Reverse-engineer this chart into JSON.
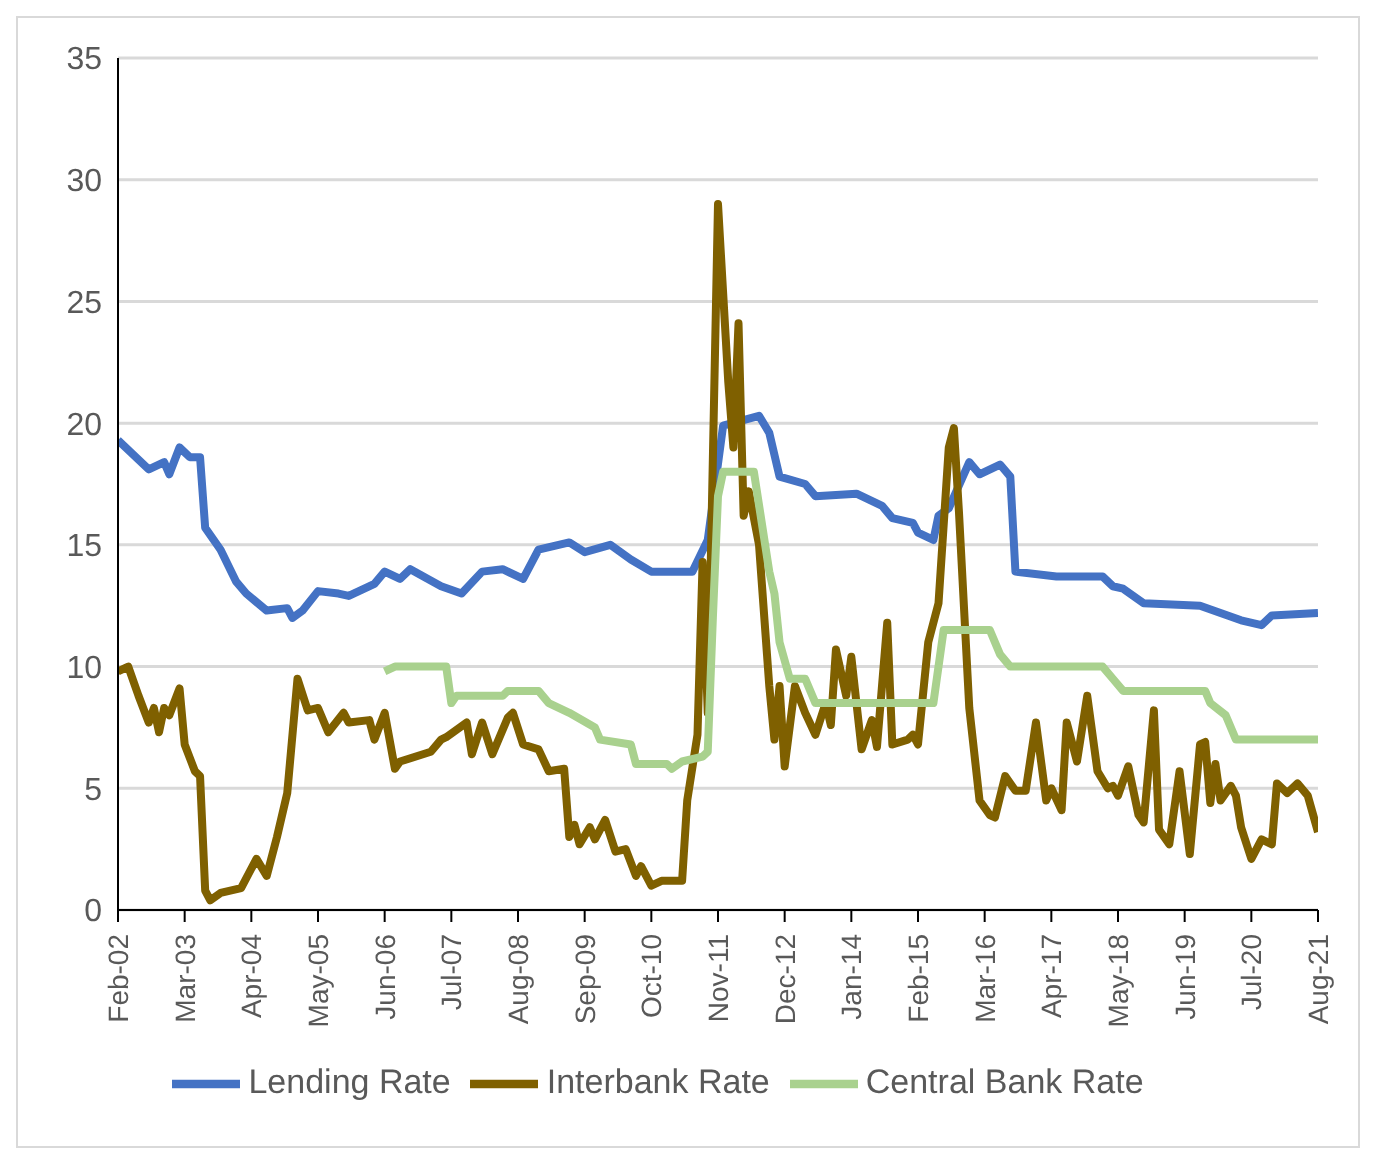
{
  "chart_data": {
    "type": "line",
    "xlim": [
      "2002-02",
      "2021-08"
    ],
    "xticks": [
      {
        "value": "2002-02",
        "label": "Feb-02"
      },
      {
        "value": "2003-03",
        "label": "Mar-03"
      },
      {
        "value": "2004-04",
        "label": "Apr-04"
      },
      {
        "value": "2005-05",
        "label": "May-05"
      },
      {
        "value": "2006-06",
        "label": "Jun-06"
      },
      {
        "value": "2007-07",
        "label": "Jul-07"
      },
      {
        "value": "2008-08",
        "label": "Aug-08"
      },
      {
        "value": "2009-09",
        "label": "Sep-09"
      },
      {
        "value": "2010-10",
        "label": "Oct-10"
      },
      {
        "value": "2011-11",
        "label": "Nov-11"
      },
      {
        "value": "2012-12",
        "label": "Dec-12"
      },
      {
        "value": "2014-01",
        "label": "Jan-14"
      },
      {
        "value": "2015-02",
        "label": "Feb-15"
      },
      {
        "value": "2016-03",
        "label": "Mar-16"
      },
      {
        "value": "2017-04",
        "label": "Apr-17"
      },
      {
        "value": "2018-05",
        "label": "May-18"
      },
      {
        "value": "2019-06",
        "label": "Jun-19"
      },
      {
        "value": "2020-07",
        "label": "Jul-20"
      },
      {
        "value": "2021-08",
        "label": "Aug-21"
      }
    ],
    "ylim": [
      0,
      35
    ],
    "yticks": [
      0,
      5,
      10,
      15,
      20,
      25,
      30,
      35
    ],
    "grid": "y",
    "legend": "bottom",
    "marker": "none",
    "line_style": "solid",
    "series": [
      {
        "name": "Lending Rate",
        "color": "#4472c4",
        "x": [
          "2002-02",
          "2002-08",
          "2002-11",
          "2002-12",
          "2003-02",
          "2003-04",
          "2003-06",
          "2003-07",
          "2003-10",
          "2004-01",
          "2004-03",
          "2004-07",
          "2004-11",
          "2004-12",
          "2005-02",
          "2005-05",
          "2005-09",
          "2005-11",
          "2006-04",
          "2006-06",
          "2006-09",
          "2006-11",
          "2007-05",
          "2007-09",
          "2008-01",
          "2008-05",
          "2008-09",
          "2008-12",
          "2009-06",
          "2009-09",
          "2010-02",
          "2010-06",
          "2010-10",
          "2011-06",
          "2011-09",
          "2011-12",
          "2012-07",
          "2012-09",
          "2012-11",
          "2013-04",
          "2013-06",
          "2014-02",
          "2014-07",
          "2014-09",
          "2015-01",
          "2015-02",
          "2015-05",
          "2015-06",
          "2015-08",
          "2015-12",
          "2016-02",
          "2016-06",
          "2016-08",
          "2016-09",
          "2017-05",
          "2018-02",
          "2018-04",
          "2018-06",
          "2018-10",
          "2019-09",
          "2020-01",
          "2020-05",
          "2020-09",
          "2020-11",
          "2021-08"
        ],
        "values": [
          19.3,
          18.1,
          18.4,
          17.9,
          19.0,
          18.6,
          18.6,
          15.7,
          14.8,
          13.5,
          13.0,
          12.3,
          12.4,
          12.0,
          12.3,
          13.1,
          13.0,
          12.9,
          13.4,
          13.9,
          13.6,
          14.0,
          13.3,
          13.0,
          13.9,
          14.0,
          13.6,
          14.8,
          15.1,
          14.7,
          15.0,
          14.4,
          13.9,
          13.9,
          15.2,
          19.9,
          20.3,
          19.6,
          17.8,
          17.5,
          17.0,
          17.1,
          16.6,
          16.1,
          15.9,
          15.5,
          15.2,
          16.2,
          16.5,
          18.4,
          17.9,
          18.3,
          17.8,
          13.9,
          13.7,
          13.7,
          13.3,
          13.2,
          12.6,
          12.5,
          12.2,
          11.9,
          11.7,
          12.1,
          12.2
        ]
      },
      {
        "name": "Interbank Rate",
        "color": "#7f6000",
        "x": [
          "2002-02",
          "2002-04",
          "2002-06",
          "2002-08",
          "2002-09",
          "2002-10",
          "2002-11",
          "2002-12",
          "2003-02",
          "2003-03",
          "2003-05",
          "2003-06",
          "2003-07",
          "2003-08",
          "2003-10",
          "2004-02",
          "2004-05",
          "2004-07",
          "2004-09",
          "2004-11",
          "2005-01",
          "2005-03",
          "2005-05",
          "2005-07",
          "2005-10",
          "2005-11",
          "2006-03",
          "2006-04",
          "2006-06",
          "2006-08",
          "2006-09",
          "2007-03",
          "2007-05",
          "2007-06",
          "2007-10",
          "2007-11",
          "2008-01",
          "2008-03",
          "2008-06",
          "2008-07",
          "2008-09",
          "2008-12",
          "2009-02",
          "2009-05",
          "2009-06",
          "2009-07",
          "2009-08",
          "2009-10",
          "2009-11",
          "2010-01",
          "2010-03",
          "2010-05",
          "2010-07",
          "2010-08",
          "2010-10",
          "2010-12",
          "2011-04",
          "2011-05",
          "2011-07",
          "2011-08",
          "2011-09",
          "2011-11",
          "2012-01",
          "2012-02",
          "2012-03",
          "2012-04",
          "2012-05",
          "2012-07",
          "2012-09",
          "2012-10",
          "2012-11",
          "2012-12",
          "2013-02",
          "2013-04",
          "2013-06",
          "2013-08",
          "2013-09",
          "2013-10",
          "2013-12",
          "2014-01",
          "2014-03",
          "2014-05",
          "2014-06",
          "2014-08",
          "2014-09",
          "2014-12",
          "2015-01",
          "2015-02",
          "2015-04",
          "2015-06",
          "2015-08",
          "2015-09",
          "2015-10",
          "2015-12",
          "2016-02",
          "2016-04",
          "2016-05",
          "2016-07",
          "2016-09",
          "2016-11",
          "2017-01",
          "2017-03",
          "2017-04",
          "2017-06",
          "2017-07",
          "2017-09",
          "2017-11",
          "2018-01",
          "2018-03",
          "2018-04",
          "2018-05",
          "2018-07",
          "2018-09",
          "2018-10",
          "2018-12",
          "2019-01",
          "2019-03",
          "2019-05",
          "2019-07",
          "2019-09",
          "2019-10",
          "2019-11",
          "2019-12",
          "2020-01",
          "2020-03",
          "2020-04",
          "2020-05",
          "2020-07",
          "2020-09",
          "2020-11",
          "2020-12",
          "2021-02",
          "2021-04",
          "2021-06",
          "2021-08"
        ],
        "values": [
          9.8,
          10.0,
          8.8,
          7.7,
          8.3,
          7.3,
          8.3,
          8.0,
          9.1,
          6.8,
          5.7,
          5.5,
          0.8,
          0.4,
          0.7,
          0.9,
          2.1,
          1.4,
          3.0,
          4.8,
          9.5,
          8.2,
          8.3,
          7.3,
          8.1,
          7.7,
          7.8,
          7.0,
          8.1,
          5.8,
          6.1,
          6.5,
          7.0,
          7.1,
          7.7,
          6.4,
          7.7,
          6.4,
          7.9,
          8.1,
          6.8,
          6.6,
          5.7,
          5.8,
          3.0,
          3.5,
          2.7,
          3.4,
          2.9,
          3.7,
          2.4,
          2.5,
          1.4,
          1.8,
          1.0,
          1.2,
          1.2,
          4.5,
          7.2,
          14.3,
          8.1,
          29.0,
          21.7,
          19.0,
          24.1,
          16.2,
          17.2,
          15.0,
          9.2,
          7.0,
          9.2,
          5.9,
          9.2,
          8.1,
          7.2,
          8.5,
          7.6,
          10.7,
          8.8,
          10.4,
          6.6,
          7.8,
          6.7,
          11.8,
          6.8,
          7.0,
          7.2,
          6.8,
          11.0,
          12.6,
          19.0,
          19.8,
          16.3,
          8.3,
          4.5,
          3.9,
          3.8,
          5.5,
          4.9,
          4.9,
          7.7,
          4.5,
          5.0,
          4.1,
          7.7,
          6.1,
          8.8,
          5.7,
          5.0,
          5.1,
          4.7,
          5.9,
          3.9,
          3.6,
          8.2,
          3.3,
          2.7,
          5.7,
          2.3,
          6.8,
          6.9,
          4.4,
          6.0,
          4.5,
          5.1,
          4.7,
          3.4,
          2.1,
          2.9,
          2.7,
          5.2,
          4.8,
          5.2,
          4.7,
          3.2
        ]
      },
      {
        "name": "Central Bank Rate",
        "color": "#a9d18e",
        "x": [
          "2006-06",
          "2006-08",
          "2007-06",
          "2007-07",
          "2007-08",
          "2008-05",
          "2008-06",
          "2008-12",
          "2009-02",
          "2009-06",
          "2009-11",
          "2009-12",
          "2010-06",
          "2010-07",
          "2011-01",
          "2011-02",
          "2011-04",
          "2011-08",
          "2011-09",
          "2011-10",
          "2011-11",
          "2011-12",
          "2012-06",
          "2012-09",
          "2012-10",
          "2012-11",
          "2013-01",
          "2013-04",
          "2013-06",
          "2015-05",
          "2015-07",
          "2016-04",
          "2016-06",
          "2016-08",
          "2018-02",
          "2018-04",
          "2018-06",
          "2019-10",
          "2019-11",
          "2020-02",
          "2020-04",
          "2021-08"
        ],
        "values": [
          9.8,
          10.0,
          10.0,
          8.5,
          8.8,
          8.8,
          9.0,
          9.0,
          8.5,
          8.1,
          7.5,
          7.0,
          6.8,
          6.0,
          6.0,
          5.8,
          6.1,
          6.3,
          6.5,
          12.0,
          17.0,
          18.0,
          18.0,
          13.9,
          13.0,
          11.0,
          9.5,
          9.5,
          8.5,
          8.5,
          11.5,
          11.5,
          10.5,
          10.0,
          10.0,
          9.5,
          9.0,
          9.0,
          8.5,
          8.0,
          7.0,
          7.0
        ]
      }
    ]
  }
}
